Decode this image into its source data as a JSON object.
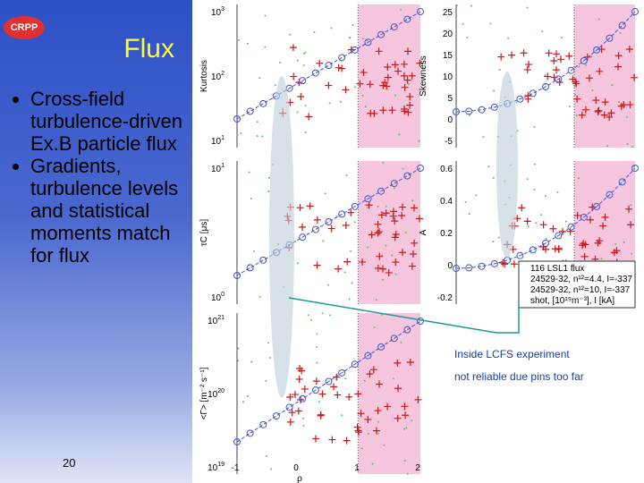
{
  "logo": "CRPP",
  "slide": {
    "title": "Flux",
    "bullets": [
      "Cross-field turbulence-driven Ex.B particle flux",
      "Gradients, turbulence levels and statistical moments match for flux"
    ],
    "page_number": "20"
  },
  "figure": {
    "panels": [
      {
        "ylabel": "Kurtosis",
        "ticks": [
          {
            "base": "10",
            "exp": "3"
          },
          {
            "base": "10",
            "exp": "2"
          },
          {
            "base": "10",
            "exp": "1"
          }
        ]
      },
      {
        "ylabel": "Skewness",
        "ticks": [
          "25",
          "20",
          "15",
          "10",
          "5",
          "0",
          "-5"
        ]
      },
      {
        "ylabel": "τC [μs]",
        "ticks": [
          {
            "base": "10",
            "exp": "1"
          },
          {
            "base": "10",
            "exp": "0"
          }
        ]
      },
      {
        "ylabel": "A",
        "ticks": [
          "0.6",
          "0.4",
          "0.2",
          "0",
          "-0.2"
        ]
      },
      {
        "ylabel": "<Γ> [m⁻² s⁻¹]",
        "ticks": [
          {
            "base": "10",
            "exp": "21"
          },
          {
            "base": "10",
            "exp": "20"
          },
          {
            "base": "10",
            "exp": "19"
          }
        ]
      }
    ],
    "xticks": [
      "-1",
      "0",
      "1",
      "2"
    ],
    "xlabel": "ρ",
    "legend": [
      "116 LSL1 flux",
      "24529-32, n¹²=4.4, I=-337",
      "24529-32, n¹²=10, I=-337",
      "shot, [10¹⁹m⁻³], I [kA]"
    ]
  },
  "annotations": [
    "Inside LCFS experiment",
    "not reliable due pins too far"
  ]
}
